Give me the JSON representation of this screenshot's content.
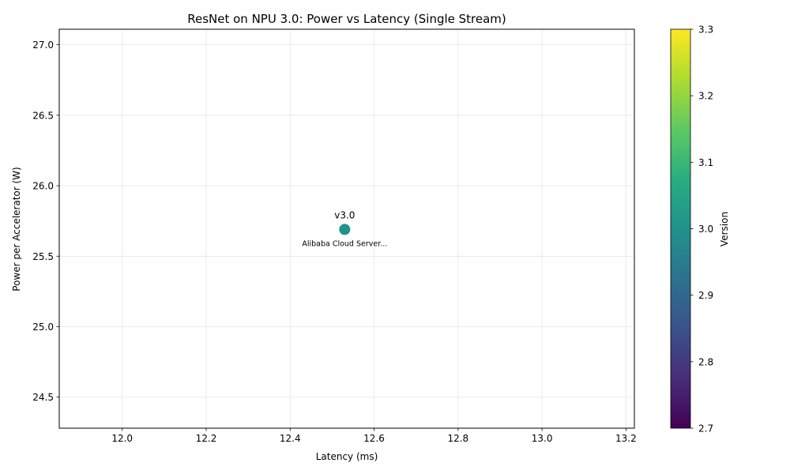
{
  "chart_data": {
    "type": "scatter",
    "title": "ResNet on NPU 3.0: Power vs Latency (Single Stream)",
    "xlabel": "Latency (ms)",
    "ylabel": "Power per Accelerator (W)",
    "xlim": [
      11.85,
      13.22
    ],
    "ylim": [
      24.28,
      27.11
    ],
    "xticks": [
      "12.0",
      "12.2",
      "12.4",
      "12.6",
      "12.8",
      "13.0",
      "13.2"
    ],
    "yticks": [
      "24.5",
      "25.0",
      "25.5",
      "26.0",
      "26.5",
      "27.0"
    ],
    "grid": true,
    "points": [
      {
        "x": 12.53,
        "y": 25.69,
        "version": 3.0,
        "label": "v3.0",
        "sublabel": "Alibaba Cloud Server..."
      }
    ],
    "colorbar": {
      "label": "Version",
      "colormap": "viridis",
      "range": [
        2.7,
        3.3
      ],
      "ticks": [
        "2.7",
        "2.8",
        "2.9",
        "3.0",
        "3.1",
        "3.2",
        "3.3"
      ]
    }
  }
}
